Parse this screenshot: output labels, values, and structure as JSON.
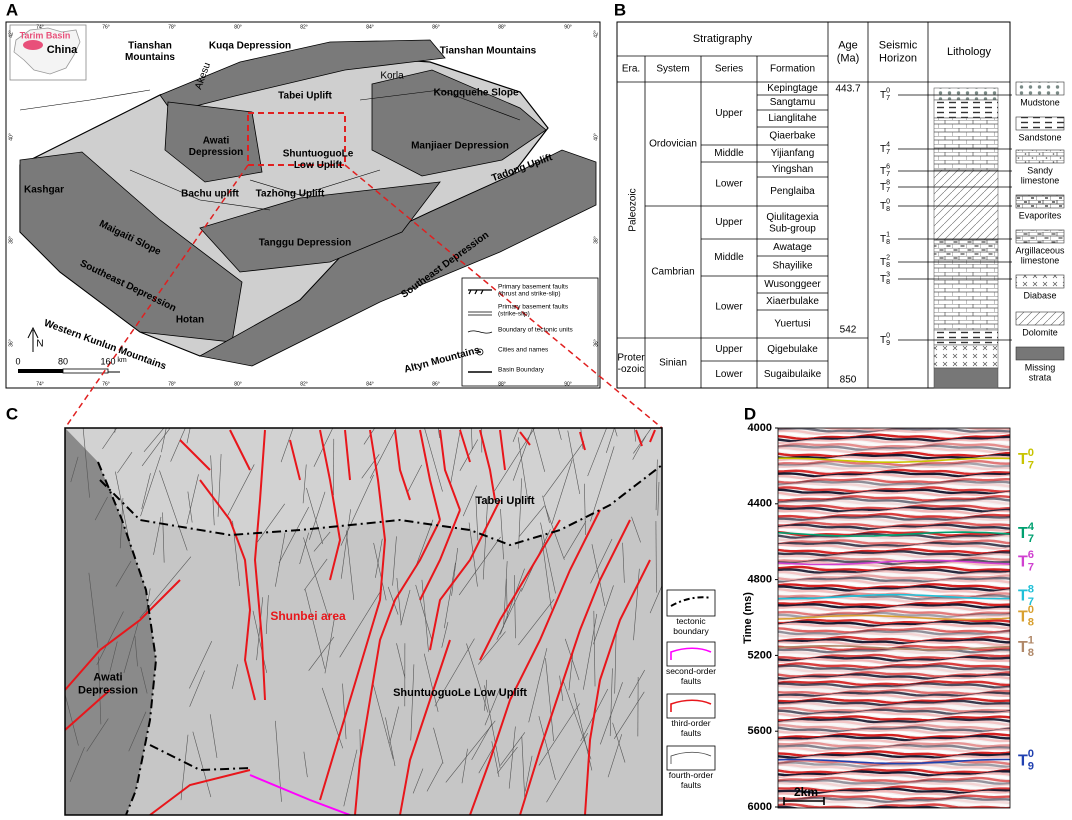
{
  "panel_a": {
    "label": "A",
    "inset": {
      "region": "Tarim Basin",
      "country": "China"
    },
    "places": [
      [
        "Tianshan",
        "Mountains"
      ],
      "Kuqa Depression",
      "Tianshan Mountains",
      "Korla",
      "Akesu",
      "Tabei Uplift",
      "Kongquehe Slope",
      [
        "Awati",
        "Depression"
      ],
      "Manjiaer Depression",
      [
        "ShuntuoguoLe",
        "Low Uplift"
      ],
      "Tadong Uplift",
      "Kashgar",
      "Bachu uplift",
      "Tazhong Uplift",
      "Maigaiti Slope",
      "Tanggu Depression",
      "Southeast Depression",
      "Southeast Depression",
      "Hotan",
      "Western Kunlun Mountains",
      "Altyn Mountains"
    ],
    "longitudes": [
      "74°",
      "76°",
      "78°",
      "80°",
      "82°",
      "84°",
      "86°",
      "88°",
      "90°"
    ],
    "latitudes": [
      "42°",
      "40°",
      "38°",
      "36°"
    ],
    "north": "N",
    "scale": [
      "0",
      "80",
      "160"
    ],
    "scale_unit": "km",
    "legend": [
      [
        "Primary basement faults",
        "(thrust and strike-slip)"
      ],
      [
        "Primary basement faults",
        "(strike-slip)"
      ],
      "Boundary of tectonic units",
      "Cities and names",
      "Basin Boundary"
    ]
  },
  "panel_b": {
    "label": "B",
    "header": {
      "stratigraphy": "Stratigraphy",
      "era": "Era.",
      "system": "System",
      "series": "Series",
      "formation": "Formation",
      "age": [
        "Age",
        "(Ma)"
      ],
      "horizon": [
        "Seismic",
        "Horizon"
      ],
      "lithology": "Lithology"
    },
    "eras": [
      {
        "name": "Paleozoic",
        "systems": [
          {
            "name": "Ordovician",
            "series": [
              {
                "name": "Upper",
                "formations": [
                  "Kepingtage",
                  "Sangtamu",
                  "Lianglitahe",
                  "Qiaerbake"
                ]
              },
              {
                "name": "Middle",
                "formations": [
                  "Yijianfang"
                ]
              },
              {
                "name": "Lower",
                "formations": [
                  "Yingshan",
                  "Penglaiba"
                ]
              }
            ]
          },
          {
            "name": "Cambrian",
            "series": [
              {
                "name": "Upper",
                "formations": [
                  [
                    "Qiulitagexia",
                    "Sub-group"
                  ]
                ]
              },
              {
                "name": "Middle",
                "formations": [
                  "Awatage",
                  "Shayilike"
                ]
              },
              {
                "name": "Lower",
                "formations": [
                  "Wusonggeer",
                  "Xiaerbulake",
                  "Yuertusi"
                ]
              }
            ]
          }
        ]
      },
      {
        "name": [
          "Proter",
          "-ozoic"
        ],
        "systems": [
          {
            "name": "Sinian",
            "series": [
              {
                "name": "Upper",
                "formations": [
                  "Qigebulake"
                ]
              },
              {
                "name": "Lower",
                "formations": [
                  "Sugaibulaike"
                ]
              }
            ]
          }
        ]
      }
    ],
    "ages": [
      443.7,
      542,
      850
    ],
    "horizons": [
      {
        "base": "T",
        "sub": "7",
        "sup": "0"
      },
      {
        "base": "T",
        "sub": "7",
        "sup": "4"
      },
      {
        "base": "T",
        "sub": "7",
        "sup": "6"
      },
      {
        "base": "T",
        "sub": "7",
        "sup": "8"
      },
      {
        "base": "T",
        "sub": "8",
        "sup": "0"
      },
      {
        "base": "T",
        "sub": "8",
        "sup": "1"
      },
      {
        "base": "T",
        "sub": "8",
        "sup": "2"
      },
      {
        "base": "T",
        "sub": "8",
        "sup": "3"
      },
      {
        "base": "T",
        "sub": "9",
        "sup": "0"
      }
    ],
    "legend": [
      "Mudstone",
      "Sandstone",
      [
        "Sandy",
        "limestone"
      ],
      "Evaporites",
      [
        "Argillaceous",
        "limestone"
      ],
      "Diabase",
      "Dolomite",
      [
        "Missing",
        "strata"
      ]
    ]
  },
  "panel_c": {
    "label": "C",
    "areas": [
      "Tabei Uplift",
      "Shunbei area",
      [
        "Awati",
        "Depression"
      ],
      "ShuntuoguoLe Low Uplift"
    ],
    "legend": [
      [
        "tectonic",
        "boundary"
      ],
      [
        "second-order",
        "faults"
      ],
      [
        "third-order",
        "faults"
      ],
      [
        "fourth-order",
        "faults"
      ]
    ]
  },
  "panel_d": {
    "label": "D",
    "ylabel": "Time (ms)",
    "ylim": [
      4000,
      6000
    ],
    "yticks": [
      4000,
      4400,
      4800,
      5200,
      5600,
      6000
    ],
    "horizons": [
      {
        "base": "T",
        "sub": "7",
        "sup": "0",
        "time": 4170,
        "color": "#c8c400"
      },
      {
        "base": "T",
        "sub": "7",
        "sup": "4",
        "time": 4560,
        "color": "#00a070"
      },
      {
        "base": "T",
        "sub": "7",
        "sup": "6",
        "time": 4710,
        "color": "#d040d0"
      },
      {
        "base": "T",
        "sub": "7",
        "sup": "8",
        "time": 4890,
        "color": "#20c0d8"
      },
      {
        "base": "T",
        "sub": "8",
        "sup": "0",
        "time": 5000,
        "color": "#d8a030"
      },
      {
        "base": "T",
        "sub": "8",
        "sup": "1",
        "time": 5160,
        "color": "#b08868"
      },
      {
        "base": "T",
        "sub": "9",
        "sup": "0",
        "time": 5760,
        "color": "#2040b0"
      }
    ],
    "scale": "2km"
  }
}
